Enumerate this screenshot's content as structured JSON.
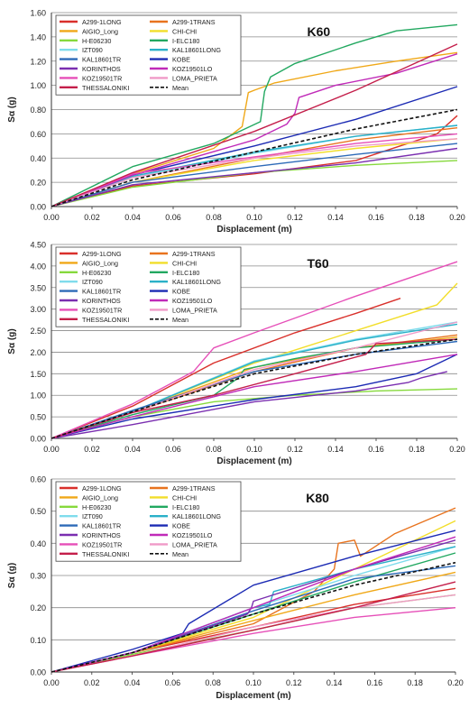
{
  "chart_data": [
    {
      "type": "line",
      "title": "K60",
      "xlabel": "Displacement (m)",
      "ylabel": "Sα (g)",
      "xlim": [
        0,
        0.2
      ],
      "ylim": [
        0,
        1.6
      ],
      "xticks": [
        "0.00",
        "0.02",
        "0.04",
        "0.06",
        "0.08",
        "0.10",
        "0.12",
        "0.14",
        "0.16",
        "0.18",
        "0.20"
      ],
      "yticks": [
        "0.00",
        "0.20",
        "0.40",
        "0.60",
        "0.80",
        "1.00",
        "1.20",
        "1.40",
        "1.60"
      ],
      "grid": true,
      "legend_position": "top-left",
      "series": [
        {
          "name": "A299-1LONG",
          "color": "#d9302b",
          "x": [
            0,
            0.04,
            0.1,
            0.15,
            0.19,
            0.2
          ],
          "y": [
            0,
            0.17,
            0.27,
            0.38,
            0.6,
            0.75
          ]
        },
        {
          "name": "A299-1TRANS",
          "color": "#e8731e",
          "x": [
            0,
            0.04,
            0.1,
            0.15,
            0.2
          ],
          "y": [
            0,
            0.2,
            0.4,
            0.55,
            0.65
          ]
        },
        {
          "name": "AIGIO_Long",
          "color": "#f0a818",
          "x": [
            0,
            0.04,
            0.08,
            0.094,
            0.097,
            0.1,
            0.11,
            0.14,
            0.17,
            0.2
          ],
          "y": [
            0,
            0.27,
            0.48,
            0.66,
            0.94,
            0.96,
            1.02,
            1.12,
            1.2,
            1.27
          ]
        },
        {
          "name": "CHI-CHI",
          "color": "#f2de2a",
          "x": [
            0,
            0.04,
            0.1,
            0.15,
            0.2
          ],
          "y": [
            0,
            0.2,
            0.38,
            0.48,
            0.56
          ]
        },
        {
          "name": "H-E06230",
          "color": "#86d93c",
          "x": [
            0,
            0.04,
            0.1,
            0.15,
            0.2
          ],
          "y": [
            0,
            0.16,
            0.28,
            0.34,
            0.38
          ]
        },
        {
          "name": "I-ELC180",
          "color": "#22a860",
          "x": [
            0,
            0.04,
            0.08,
            0.103,
            0.105,
            0.108,
            0.12,
            0.15,
            0.17,
            0.2
          ],
          "y": [
            0,
            0.33,
            0.52,
            0.7,
            0.95,
            1.07,
            1.18,
            1.35,
            1.45,
            1.5
          ]
        },
        {
          "name": "IZT090",
          "color": "#7fdcec",
          "x": [
            0,
            0.04,
            0.1,
            0.15,
            0.2
          ],
          "y": [
            0,
            0.24,
            0.44,
            0.58,
            0.67
          ]
        },
        {
          "name": "KAL18601LONG",
          "color": "#2ab0c8",
          "x": [
            0,
            0.04,
            0.1,
            0.15,
            0.2
          ],
          "y": [
            0,
            0.25,
            0.45,
            0.58,
            0.67
          ]
        },
        {
          "name": "KAL18601TR",
          "color": "#2d6ab8",
          "x": [
            0,
            0.04,
            0.1,
            0.15,
            0.2
          ],
          "y": [
            0,
            0.2,
            0.33,
            0.43,
            0.52
          ]
        },
        {
          "name": "KOBE",
          "color": "#1c2bb4",
          "x": [
            0,
            0.04,
            0.1,
            0.15,
            0.2
          ],
          "y": [
            0,
            0.26,
            0.5,
            0.72,
            0.99
          ]
        },
        {
          "name": "KORINTHOS",
          "color": "#7a2eb0",
          "x": [
            0,
            0.04,
            0.1,
            0.15,
            0.2
          ],
          "y": [
            0,
            0.18,
            0.28,
            0.36,
            0.48
          ]
        },
        {
          "name": "KOZ19501LO",
          "color": "#c02ab8",
          "x": [
            0,
            0.04,
            0.1,
            0.116,
            0.12,
            0.122,
            0.14,
            0.17,
            0.2
          ],
          "y": [
            0,
            0.26,
            0.55,
            0.68,
            0.77,
            0.9,
            1.0,
            1.1,
            1.26
          ]
        },
        {
          "name": "KOZ19501TR",
          "color": "#e64fb8",
          "x": [
            0,
            0.04,
            0.1,
            0.15,
            0.2
          ],
          "y": [
            0,
            0.27,
            0.41,
            0.52,
            0.6
          ]
        },
        {
          "name": "LOMA_PRIETA",
          "color": "#f09ac8",
          "x": [
            0,
            0.04,
            0.1,
            0.15,
            0.2
          ],
          "y": [
            0,
            0.24,
            0.4,
            0.5,
            0.56
          ]
        },
        {
          "name": "THESSALONIKI",
          "color": "#c41e4a",
          "x": [
            0,
            0.04,
            0.1,
            0.15,
            0.2
          ],
          "y": [
            0,
            0.28,
            0.62,
            0.96,
            1.34
          ]
        },
        {
          "name": "Mean",
          "color": "#111111",
          "dashed": true,
          "x": [
            0,
            0.04,
            0.1,
            0.15,
            0.2
          ],
          "y": [
            0,
            0.22,
            0.45,
            0.64,
            0.8
          ]
        }
      ]
    },
    {
      "type": "line",
      "title": "T60",
      "xlabel": "Displacement (m)",
      "ylabel": "Sα (g)",
      "xlim": [
        0,
        0.2
      ],
      "ylim": [
        0,
        4.5
      ],
      "xticks": [
        "0.00",
        "0.02",
        "0.04",
        "0.06",
        "0.08",
        "0.10",
        "0.12",
        "0.14",
        "0.16",
        "0.18",
        "0.20"
      ],
      "yticks": [
        "0.00",
        "0.50",
        "1.00",
        "1.50",
        "2.00",
        "2.50",
        "3.00",
        "3.50",
        "4.00",
        "4.50"
      ],
      "grid": true,
      "legend_position": "top-left",
      "series": [
        {
          "name": "A299-1LONG",
          "color": "#d9302b",
          "x": [
            0,
            0.04,
            0.08,
            0.12,
            0.15,
            0.172
          ],
          "y": [
            0,
            0.75,
            1.75,
            2.45,
            2.9,
            3.25
          ]
        },
        {
          "name": "A299-1TRANS",
          "color": "#e8731e",
          "x": [
            0,
            0.04,
            0.1,
            0.15,
            0.2
          ],
          "y": [
            0,
            0.6,
            1.55,
            2.1,
            2.4
          ]
        },
        {
          "name": "AIGIO_Long",
          "color": "#f0a818",
          "x": [
            0,
            0.04,
            0.1,
            0.15,
            0.2
          ],
          "y": [
            0,
            0.62,
            1.65,
            2.1,
            2.35
          ]
        },
        {
          "name": "CHI-CHI",
          "color": "#f2de2a",
          "x": [
            0,
            0.04,
            0.1,
            0.15,
            0.19,
            0.2
          ],
          "y": [
            0,
            0.62,
            1.75,
            2.5,
            3.1,
            3.6
          ]
        },
        {
          "name": "H-E06230",
          "color": "#86d93c",
          "x": [
            0,
            0.04,
            0.08,
            0.12,
            0.16,
            0.2
          ],
          "y": [
            0,
            0.5,
            0.85,
            1.0,
            1.1,
            1.15
          ]
        },
        {
          "name": "I-ELC180",
          "color": "#22a860",
          "x": [
            0,
            0.04,
            0.08,
            0.092,
            0.095,
            0.12,
            0.15,
            0.2
          ],
          "y": [
            0,
            0.55,
            1.0,
            1.4,
            1.6,
            1.85,
            2.1,
            2.3
          ]
        },
        {
          "name": "IZT090",
          "color": "#7fdcec",
          "x": [
            0,
            0.04,
            0.1,
            0.15,
            0.2
          ],
          "y": [
            0,
            0.62,
            1.8,
            2.3,
            2.7
          ]
        },
        {
          "name": "KAL18601LONG",
          "color": "#2ab0c8",
          "x": [
            0,
            0.04,
            0.1,
            0.15,
            0.2
          ],
          "y": [
            0,
            0.62,
            1.78,
            2.28,
            2.65
          ]
        },
        {
          "name": "KAL18601TR",
          "color": "#2d6ab8",
          "x": [
            0,
            0.04,
            0.1,
            0.15,
            0.2
          ],
          "y": [
            0,
            0.65,
            1.55,
            1.95,
            2.25
          ]
        },
        {
          "name": "KOBE",
          "color": "#1c2bb4",
          "x": [
            0,
            0.04,
            0.1,
            0.15,
            0.18,
            0.2
          ],
          "y": [
            0,
            0.45,
            0.9,
            1.2,
            1.5,
            1.95
          ]
        },
        {
          "name": "KORINTHOS",
          "color": "#7a2eb0",
          "x": [
            0,
            0.04,
            0.1,
            0.15,
            0.176,
            0.182,
            0.195
          ],
          "y": [
            0,
            0.32,
            0.85,
            1.1,
            1.3,
            1.4,
            1.55
          ]
        },
        {
          "name": "KOZ19501LO",
          "color": "#c02ab8",
          "x": [
            0,
            0.04,
            0.1,
            0.15,
            0.2
          ],
          "y": [
            0,
            0.5,
            1.2,
            1.55,
            1.95
          ]
        },
        {
          "name": "KOZ19501TR",
          "color": "#e64fb8",
          "x": [
            0,
            0.04,
            0.07,
            0.08,
            0.1,
            0.15,
            0.2
          ],
          "y": [
            0,
            0.8,
            1.55,
            2.1,
            2.45,
            3.3,
            4.1
          ]
        },
        {
          "name": "LOMA_PRIETA",
          "color": "#f09ac8",
          "x": [
            0,
            0.04,
            0.1,
            0.15,
            0.2
          ],
          "y": [
            0,
            0.6,
            1.6,
            2.1,
            2.7
          ]
        },
        {
          "name": "THESSALONIKI",
          "color": "#c41e4a",
          "x": [
            0,
            0.04,
            0.08,
            0.12,
            0.155,
            0.16,
            0.2
          ],
          "y": [
            0,
            0.6,
            1.0,
            1.5,
            1.95,
            2.2,
            2.3
          ]
        },
        {
          "name": "Mean",
          "color": "#111111",
          "dashed": true,
          "x": [
            0,
            0.04,
            0.1,
            0.15,
            0.2
          ],
          "y": [
            0,
            0.62,
            1.5,
            1.95,
            2.3
          ]
        }
      ]
    },
    {
      "type": "line",
      "title": "K80",
      "xlabel": "Displacement (m)",
      "ylabel": "Sα (g)",
      "xlim": [
        0,
        0.2
      ],
      "ylim": [
        0,
        0.6
      ],
      "xticks": [
        "0.00",
        "0.02",
        "0.04",
        "0.06",
        "0.08",
        "0.10",
        "0.12",
        "0.14",
        "0.16",
        "0.18",
        "0.20"
      ],
      "yticks": [
        "0.00",
        "0.10",
        "0.20",
        "0.30",
        "0.40",
        "0.50",
        "0.60"
      ],
      "grid": true,
      "legend_position": "top-left",
      "series": [
        {
          "name": "A299-1LONG",
          "color": "#d9302b",
          "x": [
            0,
            0.04,
            0.1,
            0.15,
            0.2
          ],
          "y": [
            0,
            0.06,
            0.14,
            0.21,
            0.26
          ]
        },
        {
          "name": "A299-1TRANS",
          "color": "#e8731e",
          "x": [
            0,
            0.04,
            0.1,
            0.13,
            0.14,
            0.142,
            0.15,
            0.153,
            0.17,
            0.2
          ],
          "y": [
            0,
            0.06,
            0.15,
            0.25,
            0.32,
            0.4,
            0.41,
            0.36,
            0.43,
            0.51
          ]
        },
        {
          "name": "AIGIO_Long",
          "color": "#f0a818",
          "x": [
            0,
            0.04,
            0.1,
            0.15,
            0.2
          ],
          "y": [
            0,
            0.06,
            0.16,
            0.24,
            0.31
          ]
        },
        {
          "name": "CHI-CHI",
          "color": "#f2de2a",
          "x": [
            0,
            0.04,
            0.1,
            0.15,
            0.2
          ],
          "y": [
            0,
            0.06,
            0.17,
            0.32,
            0.47
          ]
        },
        {
          "name": "H-E06230",
          "color": "#86d93c",
          "x": [
            0,
            0.04,
            0.1,
            0.15,
            0.2
          ],
          "y": [
            0,
            0.055,
            0.13,
            0.2,
            0.24
          ]
        },
        {
          "name": "I-ELC180",
          "color": "#22a860",
          "x": [
            0,
            0.04,
            0.1,
            0.15,
            0.2
          ],
          "y": [
            0,
            0.06,
            0.18,
            0.28,
            0.37
          ]
        },
        {
          "name": "IZT090",
          "color": "#7fdcec",
          "x": [
            0,
            0.04,
            0.1,
            0.15,
            0.2
          ],
          "y": [
            0,
            0.06,
            0.2,
            0.3,
            0.39
          ]
        },
        {
          "name": "KAL18601LONG",
          "color": "#2ab0c8",
          "x": [
            0,
            0.04,
            0.1,
            0.108,
            0.11,
            0.15,
            0.2
          ],
          "y": [
            0,
            0.06,
            0.2,
            0.21,
            0.25,
            0.32,
            0.39
          ]
        },
        {
          "name": "KAL18601TR",
          "color": "#2d6ab8",
          "x": [
            0,
            0.04,
            0.1,
            0.15,
            0.2
          ],
          "y": [
            0,
            0.06,
            0.19,
            0.29,
            0.33
          ]
        },
        {
          "name": "KOBE",
          "color": "#1c2bb4",
          "x": [
            0,
            0.04,
            0.065,
            0.068,
            0.1,
            0.15,
            0.2
          ],
          "y": [
            0,
            0.07,
            0.12,
            0.15,
            0.27,
            0.36,
            0.44
          ]
        },
        {
          "name": "KORINTHOS",
          "color": "#7a2eb0",
          "x": [
            0,
            0.04,
            0.097,
            0.099,
            0.1,
            0.15,
            0.2
          ],
          "y": [
            0,
            0.06,
            0.18,
            0.2,
            0.22,
            0.32,
            0.41
          ]
        },
        {
          "name": "KOZ19501LO",
          "color": "#c02ab8",
          "x": [
            0,
            0.04,
            0.1,
            0.15,
            0.2
          ],
          "y": [
            0,
            0.06,
            0.2,
            0.32,
            0.42
          ]
        },
        {
          "name": "KOZ19501TR",
          "color": "#e64fb8",
          "x": [
            0,
            0.04,
            0.1,
            0.15,
            0.2
          ],
          "y": [
            0,
            0.05,
            0.12,
            0.17,
            0.2
          ]
        },
        {
          "name": "LOMA_PRIETA",
          "color": "#f09ac8",
          "x": [
            0,
            0.04,
            0.1,
            0.15,
            0.2
          ],
          "y": [
            0,
            0.05,
            0.14,
            0.2,
            0.24
          ]
        },
        {
          "name": "THESSALONIKI",
          "color": "#c41e4a",
          "x": [
            0,
            0.04,
            0.1,
            0.15,
            0.2
          ],
          "y": [
            0,
            0.05,
            0.13,
            0.2,
            0.28
          ]
        },
        {
          "name": "Mean",
          "color": "#111111",
          "dashed": true,
          "x": [
            0,
            0.04,
            0.1,
            0.15,
            0.2
          ],
          "y": [
            0,
            0.06,
            0.18,
            0.27,
            0.34
          ]
        }
      ]
    }
  ]
}
